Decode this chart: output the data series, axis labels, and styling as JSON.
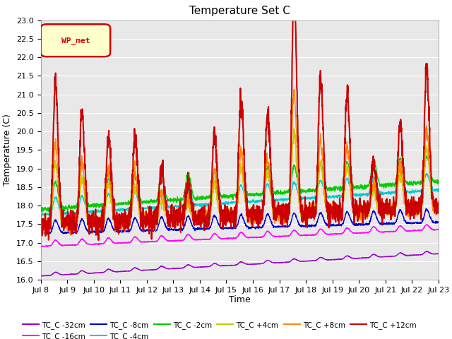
{
  "title": "Temperature Set C",
  "xlabel": "Time",
  "ylabel": "Temperature (C)",
  "ylim": [
    16.0,
    23.0
  ],
  "yticks": [
    16.0,
    16.5,
    17.0,
    17.5,
    18.0,
    18.5,
    19.0,
    19.5,
    20.0,
    20.5,
    21.0,
    21.5,
    22.0,
    22.5,
    23.0
  ],
  "xtick_labels": [
    "Jul 8",
    "Jul 9",
    "Jul 10",
    "Jul 11",
    "Jul 12",
    "Jul 13",
    "Jul 14",
    "Jul 15",
    "Jul 16",
    "Jul 17",
    "Jul 18",
    "Jul 19",
    "Jul 20",
    "Jul 21",
    "Jul 22",
    "Jul 23"
  ],
  "legend_label": "WP_met",
  "legend_bg": "#FFFFCC",
  "legend_border": "#CC0000",
  "series_labels": [
    "TC_C -32cm",
    "TC_C -16cm",
    "TC_C -8cm",
    "TC_C -4cm",
    "TC_C -2cm",
    "TC_C +4cm",
    "TC_C +8cm",
    "TC_C +12cm"
  ],
  "series_colors": [
    "#9900CC",
    "#FF00FF",
    "#0000CC",
    "#00CCCC",
    "#00CC00",
    "#CCCC00",
    "#FF8800",
    "#CC0000"
  ],
  "series_linewidths": [
    1.0,
    1.0,
    1.0,
    1.0,
    1.0,
    1.0,
    1.0,
    1.5
  ],
  "n_days": 15,
  "samples_per_day": 144,
  "bg_color": "#FFFFFF",
  "plot_bg": "#E8E8E8",
  "grid_color": "#FFFFFF",
  "title_fontsize": 11,
  "axis_fontsize": 9,
  "tick_fontsize": 8
}
